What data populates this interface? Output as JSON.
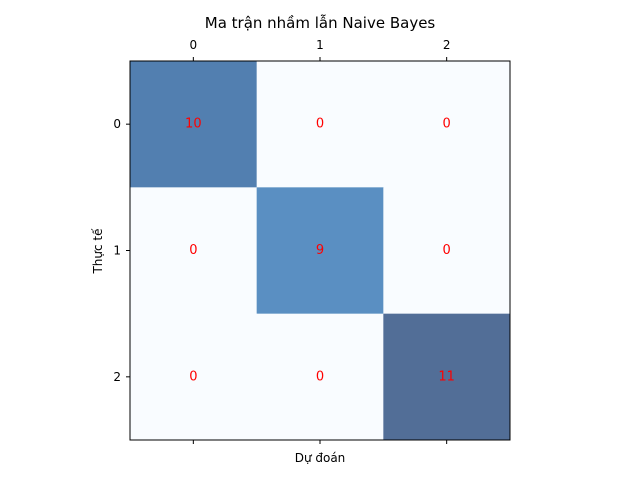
{
  "chart_data": {
    "type": "heatmap",
    "title": "Ma trận nhầm lẫn Naive Bayes",
    "xlabel": "Dự đoán",
    "ylabel": "Thực tế",
    "x_categories": [
      "0",
      "1",
      "2"
    ],
    "y_categories": [
      "0",
      "1",
      "2"
    ],
    "x_ticks_position": "top",
    "values": [
      [
        10,
        0,
        0
      ],
      [
        0,
        9,
        0
      ],
      [
        0,
        0,
        11
      ]
    ],
    "vmin": 0,
    "vmax": 11,
    "colormap": "Blues",
    "cell_alpha": 0.7,
    "annotation_color": "#ff0000",
    "grid": false
  }
}
